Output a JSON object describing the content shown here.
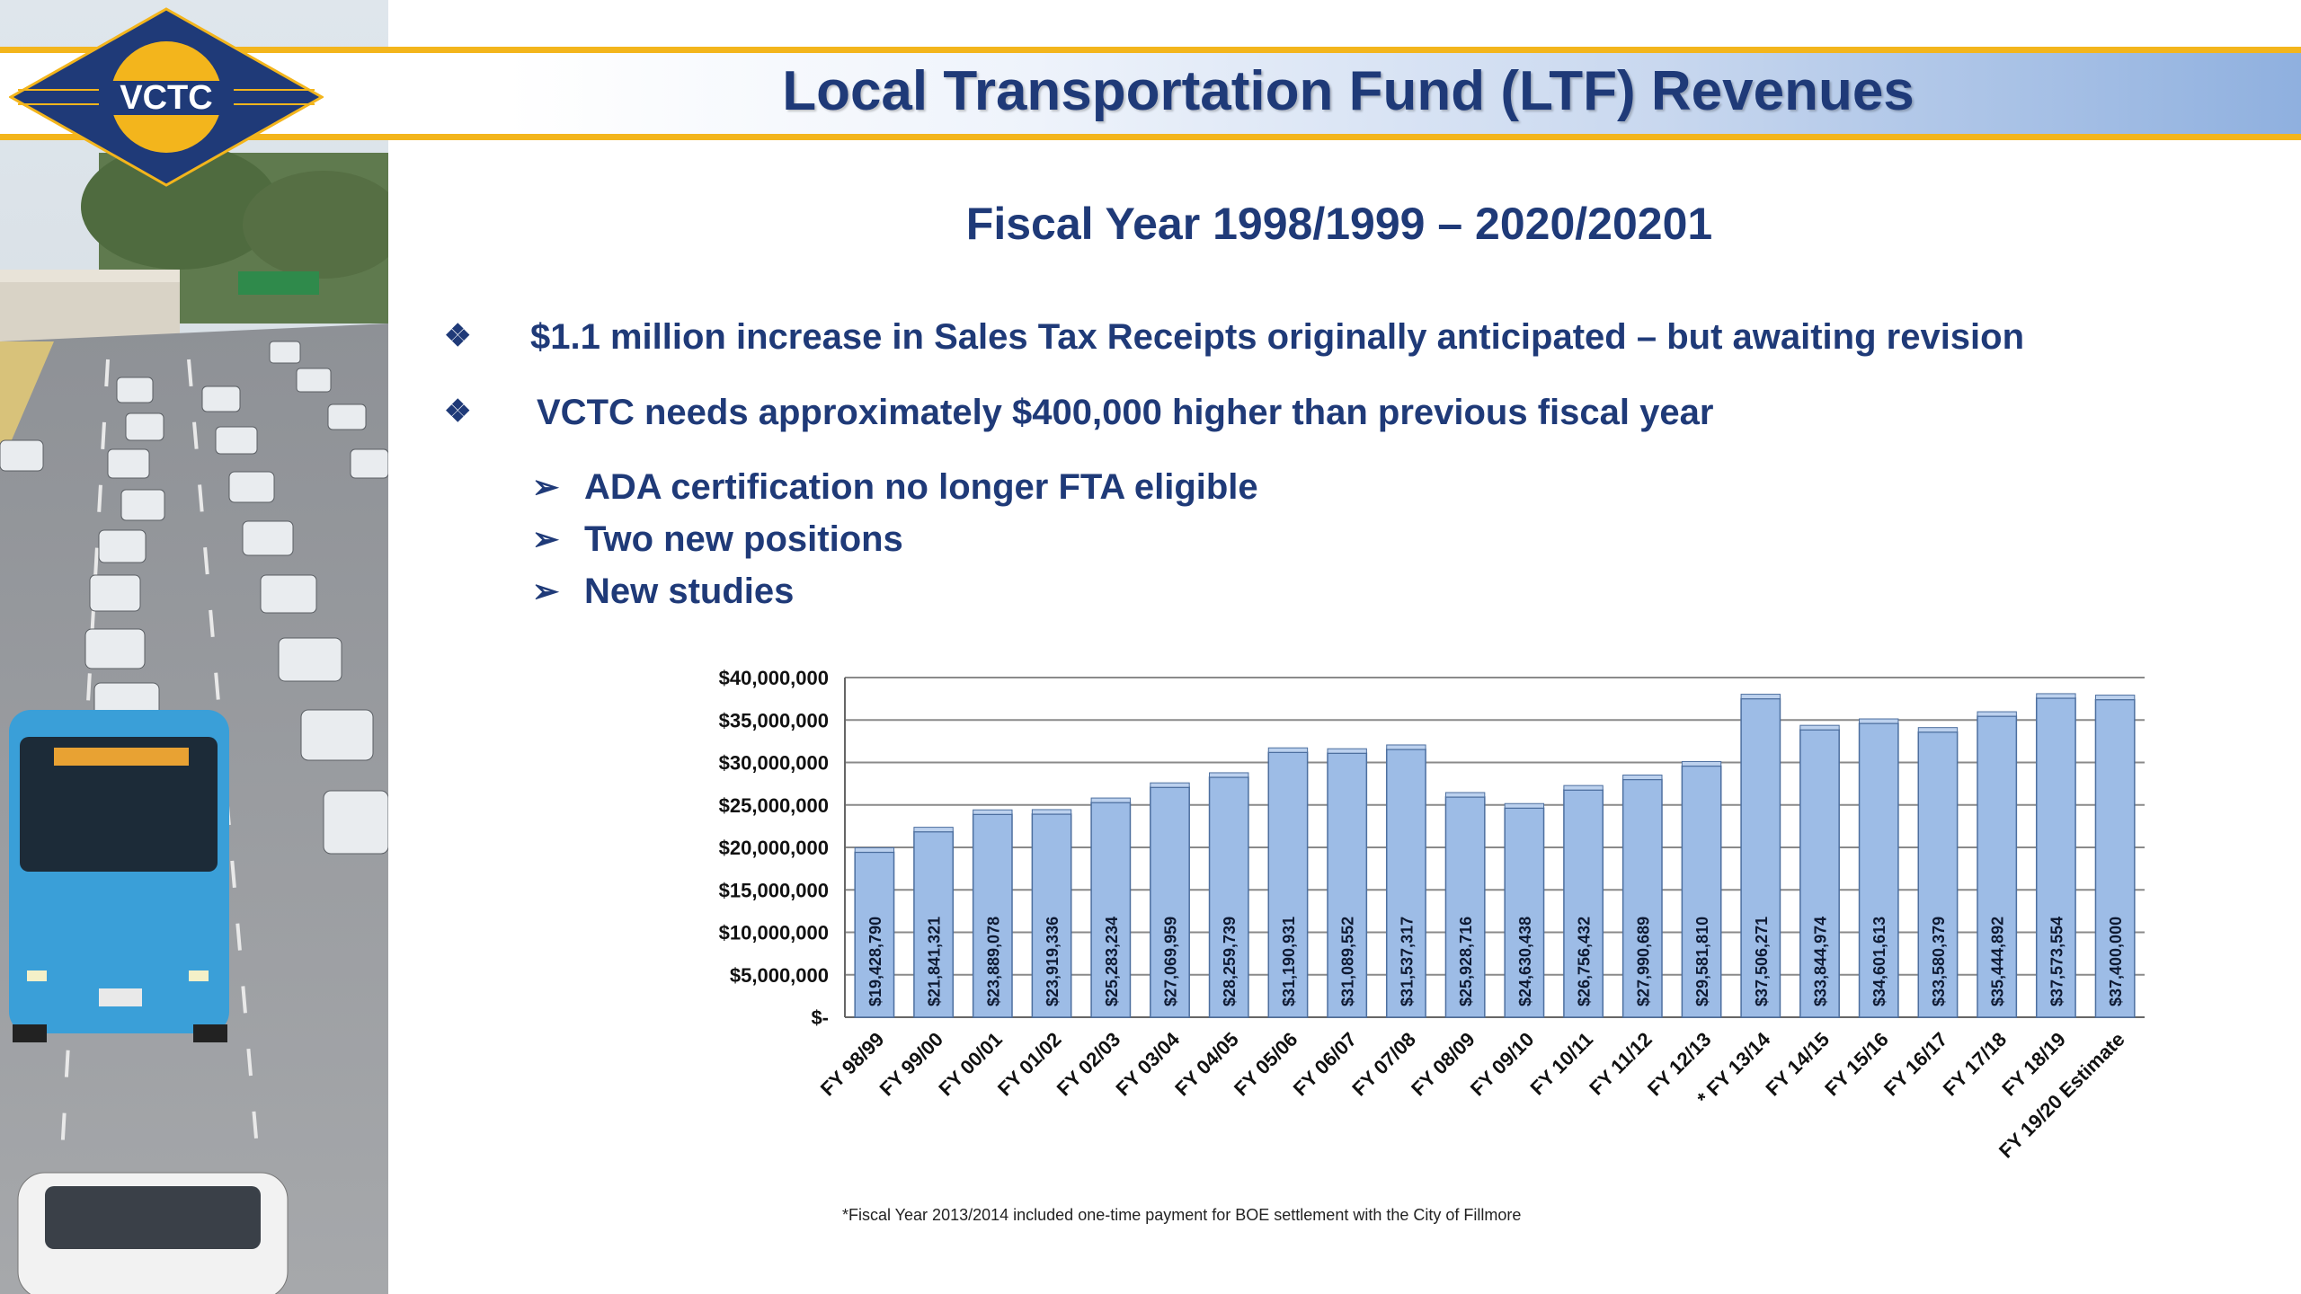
{
  "header": {
    "title": "Local Transportation Fund (LTF) Revenues",
    "logo_text": "VCTC",
    "colors": {
      "accent_gold": "#f3b51c",
      "title_blue": "#1f3a78",
      "logo_blue": "#1f3a78"
    }
  },
  "slide": {
    "subtitle": "Fiscal Year 1998/1999 – 2020/20201",
    "bullets": [
      {
        "glyph": "❖",
        "text": "$1.1 million increase in Sales Tax Receipts originally anticipated – but awaiting revision"
      },
      {
        "glyph": "❖",
        "text": "VCTC needs approximately $400,000 higher than previous fiscal year"
      }
    ],
    "sub_bullets": [
      {
        "glyph": "➢",
        "text": "ADA certification no longer FTA eligible"
      },
      {
        "glyph": "➢",
        "text": "Two new positions"
      },
      {
        "glyph": "➢",
        "text": "New studies"
      }
    ],
    "footnote": "*Fiscal Year 2013/2014 included one-time payment for BOE settlement with the City of Fillmore"
  },
  "chart_data": {
    "type": "bar",
    "categories": [
      "FY 98/99",
      "FY 99/00",
      "FY 00/01",
      "FY 01/02",
      "FY 02/03",
      "FY 03/04",
      "FY 04/05",
      "FY 05/06",
      "FY 06/07",
      "FY 07/08",
      "FY 08/09",
      "FY 09/10",
      "FY 10/11",
      "FY 11/12",
      "FY 12/13",
      "* FY 13/14",
      "FY 14/15",
      "FY 15/16",
      "FY 16/17",
      "FY 17/18",
      "FY 18/19",
      "FY 19/20 Estimate"
    ],
    "values": [
      19428790,
      21841321,
      23889078,
      23919336,
      25283234,
      27069959,
      28259739,
      31190931,
      31089552,
      31537317,
      25928716,
      24630438,
      26756432,
      27990689,
      29581810,
      37506271,
      33844974,
      34601613,
      33580379,
      35444892,
      37573554,
      37400000
    ],
    "value_labels": [
      "$19,428,790",
      "$21,841,321",
      "$23,889,078",
      "$23,919,336",
      "$25,283,234",
      "$27,069,959",
      "$28,259,739",
      "$31,190,931",
      "$31,089,552",
      "$31,537,317",
      "$25,928,716",
      "$24,630,438",
      "$26,756,432",
      "$27,990,689",
      "$29,581,810",
      "$37,506,271",
      "$33,844,974",
      "$34,601,613",
      "$33,580,379",
      "$35,444,892",
      "$37,573,554",
      "$37,400,000"
    ],
    "y_ticks": [
      0,
      5000000,
      10000000,
      15000000,
      20000000,
      25000000,
      30000000,
      35000000,
      40000000
    ],
    "y_tick_labels": [
      "$-",
      "$5,000,000",
      "$10,000,000",
      "$15,000,000",
      "$20,000,000",
      "$25,000,000",
      "$30,000,000",
      "$35,000,000",
      "$40,000,000"
    ],
    "ylim": [
      0,
      40000000
    ],
    "grid": true,
    "legend": "none",
    "title": "",
    "xlabel": "",
    "ylabel": "",
    "bar_color": "#9dbce6"
  }
}
